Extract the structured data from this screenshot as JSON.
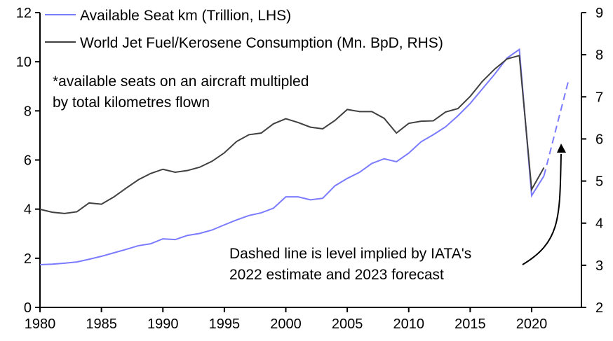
{
  "chart_data": {
    "type": "line",
    "x_range": [
      1980,
      2024
    ],
    "x_ticks": [
      "1980",
      "1985",
      "1990",
      "1995",
      "2000",
      "2005",
      "2010",
      "2015",
      "2020"
    ],
    "y_left": {
      "range": [
        0,
        12
      ],
      "ticks": [
        "0",
        "2",
        "4",
        "6",
        "8",
        "10",
        "12"
      ]
    },
    "y_right": {
      "range": [
        2,
        9
      ],
      "ticks": [
        "2",
        "3",
        "4",
        "5",
        "6",
        "7",
        "8",
        "9"
      ]
    },
    "grid": false,
    "legend_position": "top-left",
    "series": [
      {
        "name": "Available Seat km (Trillion, LHS)",
        "axis": "left",
        "color": "#7b7bff",
        "x": [
          1980,
          1981,
          1982,
          1983,
          1984,
          1985,
          1986,
          1987,
          1988,
          1989,
          1990,
          1991,
          1992,
          1993,
          1994,
          1995,
          1996,
          1997,
          1998,
          1999,
          2000,
          2001,
          2002,
          2003,
          2004,
          2005,
          2006,
          2007,
          2008,
          2009,
          2010,
          2011,
          2012,
          2013,
          2014,
          2015,
          2016,
          2017,
          2018,
          2019,
          2020,
          2021
        ],
        "values": [
          1.74,
          1.76,
          1.8,
          1.85,
          1.96,
          2.08,
          2.22,
          2.36,
          2.51,
          2.59,
          2.79,
          2.76,
          2.93,
          3.01,
          3.15,
          3.36,
          3.56,
          3.74,
          3.85,
          4.04,
          4.5,
          4.5,
          4.38,
          4.44,
          4.95,
          5.25,
          5.5,
          5.86,
          6.05,
          5.93,
          6.28,
          6.74,
          7.03,
          7.35,
          7.8,
          8.3,
          8.9,
          9.5,
          10.15,
          10.5,
          4.55,
          5.35
        ],
        "dashed_x": [
          2021,
          2022,
          2023
        ],
        "dashed_values": [
          5.35,
          7.3,
          9.24
        ]
      },
      {
        "name": "World Jet Fuel/Kerosene Consumption (Mn. BpD, RHS)",
        "axis": "right",
        "color": "#404040",
        "x": [
          1980,
          1981,
          1982,
          1983,
          1984,
          1985,
          1986,
          1987,
          1988,
          1989,
          1990,
          1991,
          1992,
          1993,
          1994,
          1995,
          1996,
          1997,
          1998,
          1999,
          2000,
          2001,
          2002,
          2003,
          2004,
          2005,
          2006,
          2007,
          2008,
          2009,
          2010,
          2011,
          2012,
          2013,
          2014,
          2015,
          2016,
          2017,
          2018,
          2019,
          2020,
          2021
        ],
        "values": [
          4.33,
          4.26,
          4.23,
          4.27,
          4.48,
          4.45,
          4.62,
          4.83,
          5.03,
          5.18,
          5.28,
          5.21,
          5.25,
          5.33,
          5.47,
          5.67,
          5.94,
          6.1,
          6.14,
          6.36,
          6.48,
          6.39,
          6.28,
          6.24,
          6.44,
          6.7,
          6.65,
          6.65,
          6.49,
          6.14,
          6.37,
          6.42,
          6.43,
          6.64,
          6.72,
          7.01,
          7.37,
          7.66,
          7.9,
          7.98,
          4.8,
          5.32
        ]
      }
    ],
    "annotations": [
      {
        "lines": [
          "*available seats on an aircraft multipled",
          "by total kilometres flown"
        ]
      },
      {
        "lines": [
          "Dashed line is level implied by IATA's",
          "2022 estimate and 2023 forecast"
        ]
      }
    ]
  }
}
